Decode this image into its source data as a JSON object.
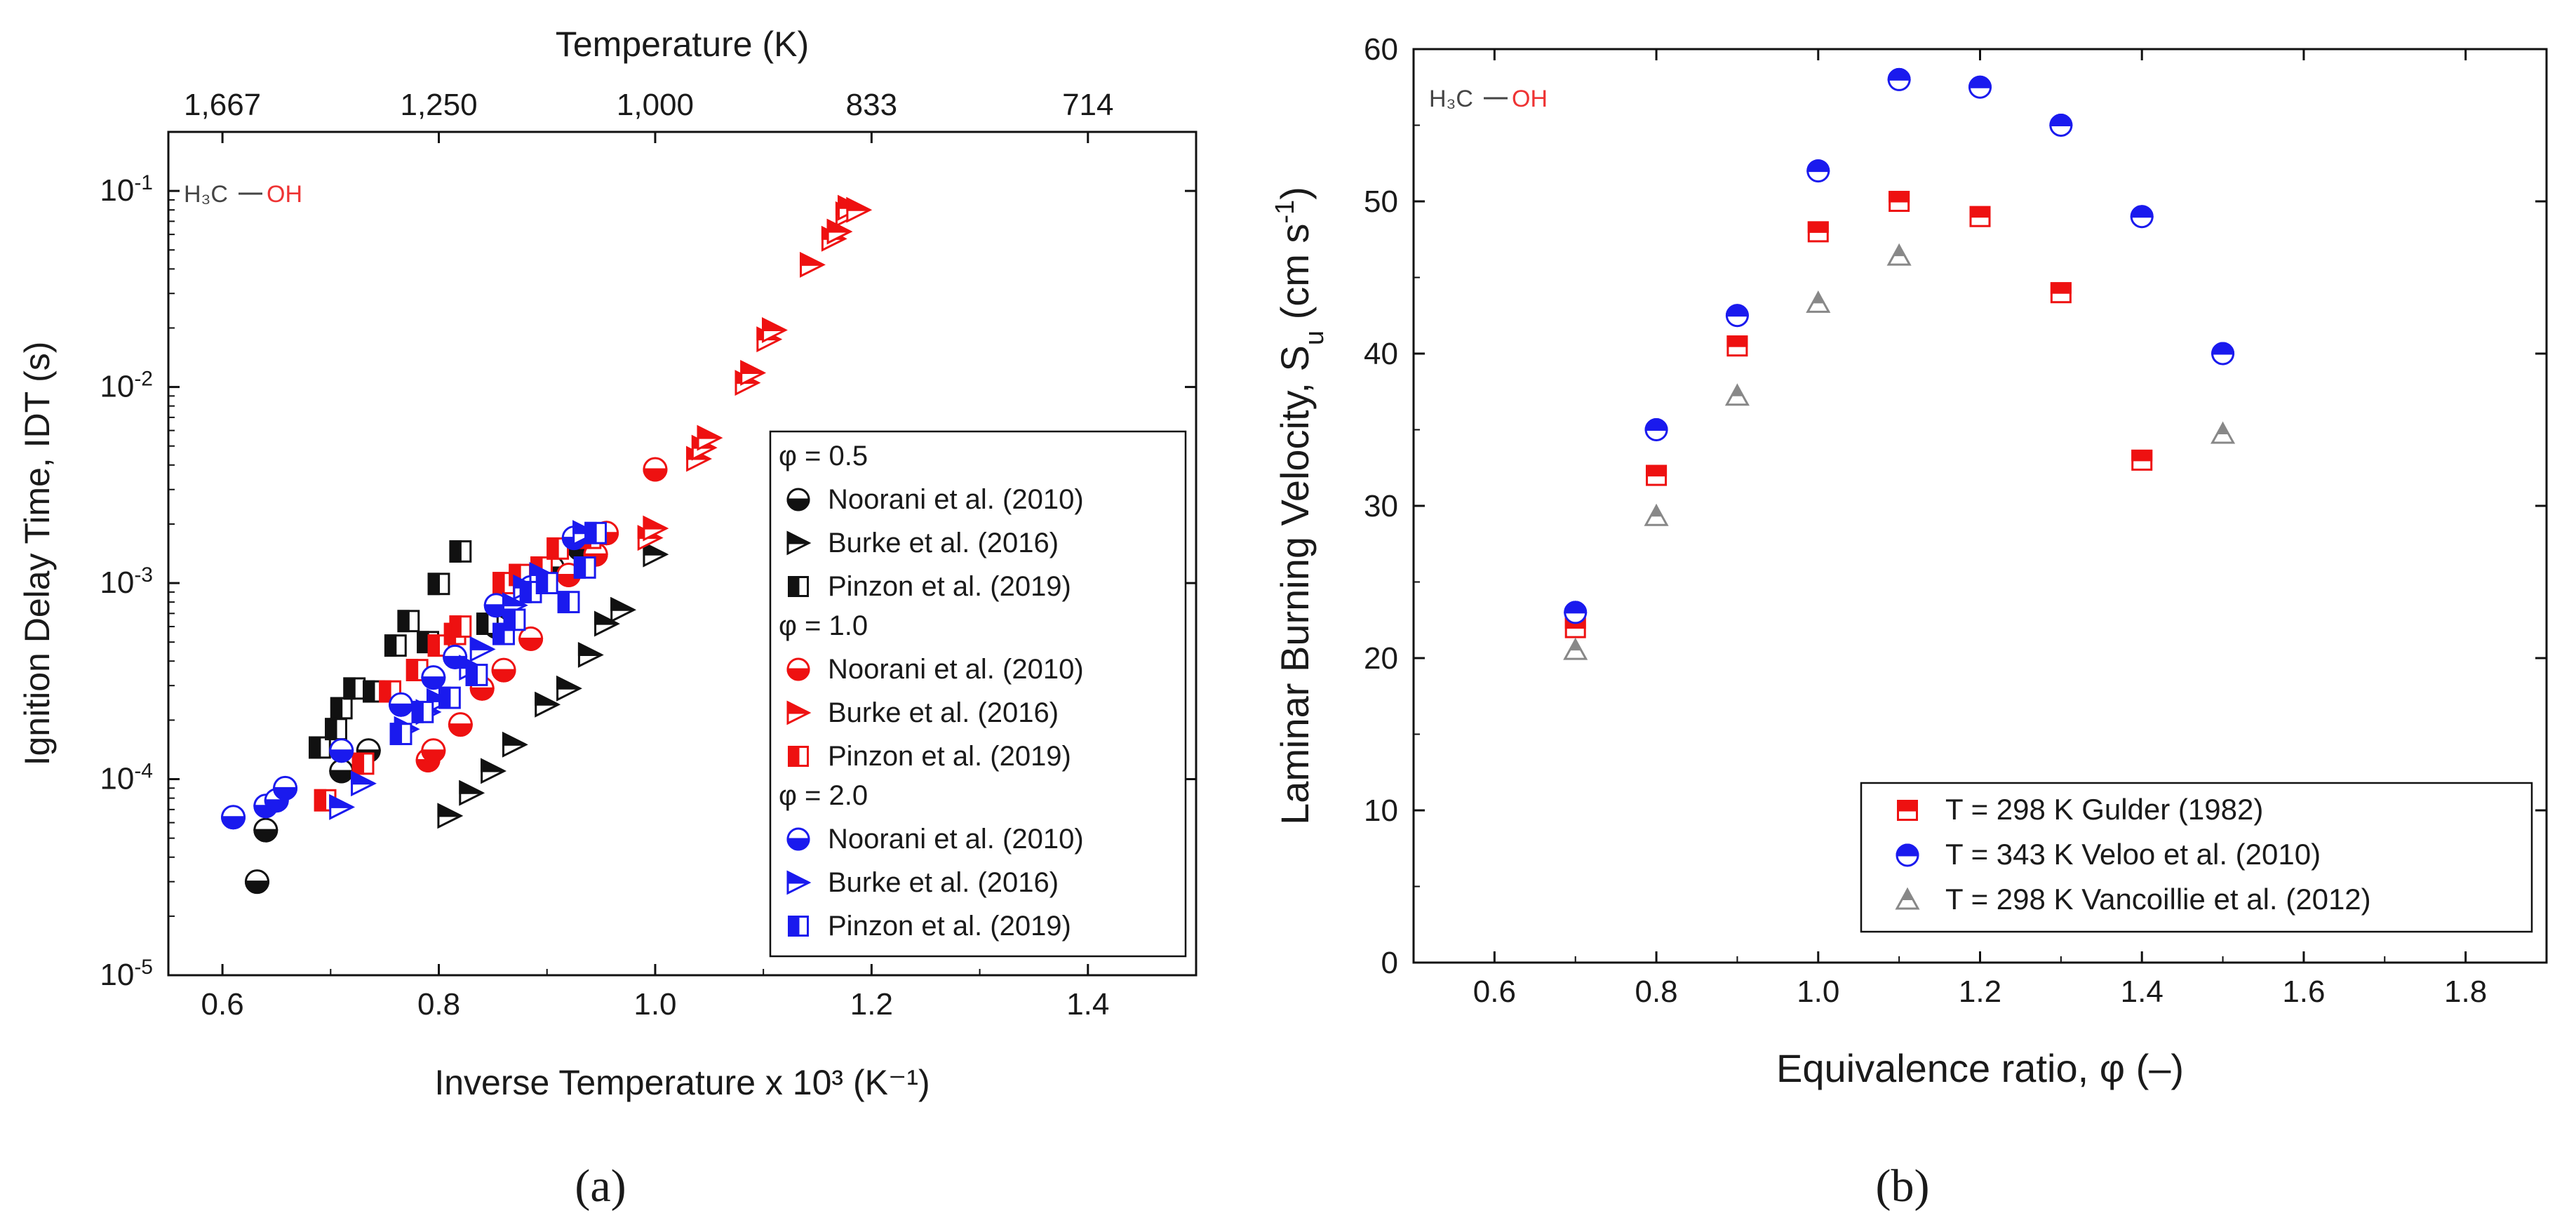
{
  "figure": {
    "panel_a_label": "(a)",
    "panel_b_label": "(b)"
  },
  "chart_data": [
    {
      "type": "scatter",
      "panel": "a",
      "xlabel": "Inverse Temperature x 10³ (K⁻¹)",
      "ylabel": "Ignition Delay Time, IDT (s)",
      "top_axis_label": "Temperature (K)",
      "top_ticks": [
        {
          "label": "1,667",
          "inv_x": 0.6
        },
        {
          "label": "1,250",
          "inv_x": 0.8
        },
        {
          "label": "1,000",
          "inv_x": 1.0
        },
        {
          "label": "833",
          "inv_x": 1.2
        },
        {
          "label": "714",
          "inv_x": 1.4
        }
      ],
      "xlim": [
        0.55,
        1.5
      ],
      "xticks": [
        0.6,
        0.8,
        1.0,
        1.2,
        1.4
      ],
      "xtick_labels": [
        "0.6",
        "0.8",
        "1.0",
        "1.2",
        "1.4"
      ],
      "ylim": [
        1e-05,
        0.2
      ],
      "yscale": "log",
      "yticks": [
        {
          "value": 0.1,
          "mantissa": "10",
          "exp": "-1"
        },
        {
          "value": 0.01,
          "mantissa": "10",
          "exp": "-2"
        },
        {
          "value": 0.001,
          "mantissa": "10",
          "exp": "-3"
        },
        {
          "value": 0.0001,
          "mantissa": "10",
          "exp": "-4"
        },
        {
          "value": 1e-05,
          "mantissa": "10",
          "exp": "-5"
        }
      ],
      "molecule": {
        "left": "H₃C",
        "right": "OH"
      },
      "colors": {
        "black": "#111111",
        "red": "#ee1111",
        "blue": "#1a1aee",
        "gray": "#888888"
      },
      "legend": {
        "position": "right",
        "groups": [
          {
            "title": "φ = 0.5",
            "entries": [
              {
                "label": "Noorani et al. (2010)",
                "marker": "circle-half-bottom",
                "color": "#111111"
              },
              {
                "label": "Burke et al. (2016)",
                "marker": "triangle-right-half",
                "color": "#111111"
              },
              {
                "label": "Pinzon et al. (2019)",
                "marker": "square-half-left",
                "color": "#111111"
              }
            ]
          },
          {
            "title": "φ = 1.0",
            "entries": [
              {
                "label": "Noorani et al. (2010)",
                "marker": "circle-half-bottom",
                "color": "#ee1111"
              },
              {
                "label": "Burke et al. (2016)",
                "marker": "triangle-right-half",
                "color": "#ee1111"
              },
              {
                "label": "Pinzon et al. (2019)",
                "marker": "square-half-left",
                "color": "#ee1111"
              }
            ]
          },
          {
            "title": "φ = 2.0",
            "entries": [
              {
                "label": "Noorani et al. (2010)",
                "marker": "circle-half-bottom",
                "color": "#1a1aee"
              },
              {
                "label": "Burke et al. (2016)",
                "marker": "triangle-right-half",
                "color": "#1a1aee"
              },
              {
                "label": "Pinzon et al. (2019)",
                "marker": "square-half-left",
                "color": "#1a1aee"
              }
            ]
          }
        ]
      },
      "series": [
        {
          "name": "φ = 0.5 Noorani et al. (2010)",
          "marker": "circle-half-bottom",
          "color": "#111111",
          "points": [
            [
              0.632,
              3e-05
            ],
            [
              0.64,
              5.5e-05
            ],
            [
              0.71,
              0.00011
            ],
            [
              0.735,
              0.00014
            ],
            [
              0.853,
              0.0006
            ],
            [
              0.905,
              0.0012
            ],
            [
              0.93,
              0.0015
            ]
          ]
        },
        {
          "name": "φ = 0.5 Burke et al. (2016)",
          "marker": "triangle-right-half",
          "color": "#111111",
          "points": [
            [
              0.81,
              6.5e-05
            ],
            [
              0.83,
              8.5e-05
            ],
            [
              0.85,
              0.00011
            ],
            [
              0.87,
              0.00015
            ],
            [
              0.9,
              0.00024
            ],
            [
              0.92,
              0.00029
            ],
            [
              0.94,
              0.00043
            ],
            [
              0.955,
              0.00062
            ],
            [
              0.97,
              0.00073
            ],
            [
              1.0,
              0.0014
            ]
          ]
        },
        {
          "name": "φ = 0.5 Pinzon et al. (2019)",
          "marker": "square-half-left",
          "color": "#111111",
          "points": [
            [
              0.69,
              0.000145
            ],
            [
              0.705,
              0.00018
            ],
            [
              0.71,
              0.00023
            ],
            [
              0.722,
              0.00029
            ],
            [
              0.74,
              0.00028
            ],
            [
              0.76,
              0.00048
            ],
            [
              0.772,
              0.00064
            ],
            [
              0.8,
              0.00099
            ],
            [
              0.82,
              0.00145
            ],
            [
              0.79,
              0.0005
            ],
            [
              0.845,
              0.00062
            ]
          ]
        },
        {
          "name": "φ = 1.0 Noorani et al. (2010)",
          "marker": "circle-half-bottom",
          "color": "#ee1111",
          "points": [
            [
              0.79,
              0.000125
            ],
            [
              0.795,
              0.00014
            ],
            [
              0.82,
              0.00019
            ],
            [
              0.84,
              0.00029
            ],
            [
              0.86,
              0.00036
            ],
            [
              0.885,
              0.00052
            ],
            [
              0.92,
              0.0011
            ],
            [
              0.945,
              0.0014
            ],
            [
              0.955,
              0.0018
            ],
            [
              1.0,
              0.0038
            ]
          ]
        },
        {
          "name": "φ = 1.0 Burke et al. (2016)",
          "marker": "triangle-right-half",
          "color": "#ee1111",
          "points": [
            [
              0.995,
              0.0017
            ],
            [
              1.0,
              0.0019
            ],
            [
              1.04,
              0.0043
            ],
            [
              1.045,
              0.0049
            ],
            [
              1.05,
              0.0055
            ],
            [
              1.085,
              0.0105
            ],
            [
              1.09,
              0.0118
            ],
            [
              1.105,
              0.0175
            ],
            [
              1.11,
              0.0195
            ],
            [
              1.145,
              0.042
            ],
            [
              1.165,
              0.057
            ],
            [
              1.17,
              0.062
            ],
            [
              1.178,
              0.076
            ],
            [
              1.18,
              0.082
            ],
            [
              1.188,
              0.08
            ]
          ]
        },
        {
          "name": "φ = 1.0 Pinzon et al. (2019)",
          "marker": "square-half-left",
          "color": "#ee1111",
          "points": [
            [
              0.695,
              7.8e-05
            ],
            [
              0.73,
              0.00012
            ],
            [
              0.755,
              0.00028
            ],
            [
              0.78,
              0.00036
            ],
            [
              0.8,
              0.00048
            ],
            [
              0.815,
              0.00055
            ],
            [
              0.82,
              0.0006
            ],
            [
              0.86,
              0.001
            ],
            [
              0.875,
              0.0011
            ],
            [
              0.895,
              0.0012
            ],
            [
              0.91,
              0.0015
            ],
            [
              0.94,
              0.0017
            ]
          ]
        },
        {
          "name": "φ = 2.0 Noorani et al. (2010)",
          "marker": "circle-half-bottom",
          "color": "#1a1aee",
          "points": [
            [
              0.61,
              6.4e-05
            ],
            [
              0.64,
              7.3e-05
            ],
            [
              0.65,
              7.8e-05
            ],
            [
              0.658,
              9e-05
            ],
            [
              0.71,
              0.00014
            ],
            [
              0.765,
              0.00024
            ],
            [
              0.795,
              0.00033
            ],
            [
              0.815,
              0.00042
            ],
            [
              0.853,
              0.00077
            ],
            [
              0.885,
              0.00095
            ],
            [
              0.925,
              0.0017
            ]
          ]
        },
        {
          "name": "φ = 2.0 Burke et al. (2016)",
          "marker": "triangle-right-half",
          "color": "#1a1aee",
          "points": [
            [
              0.71,
              7.2e-05
            ],
            [
              0.73,
              9.5e-05
            ],
            [
              0.77,
              0.00018
            ],
            [
              0.79,
              0.00022
            ],
            [
              0.8,
              0.00025
            ],
            [
              0.83,
              0.00037
            ],
            [
              0.84,
              0.00046
            ],
            [
              0.87,
              0.00077
            ],
            [
              0.88,
              0.00095
            ],
            [
              0.895,
              0.0011
            ],
            [
              0.935,
              0.0018
            ]
          ]
        },
        {
          "name": "φ = 2.0 Pinzon et al. (2019)",
          "marker": "square-half-left",
          "color": "#1a1aee",
          "points": [
            [
              0.765,
              0.00017
            ],
            [
              0.785,
              0.00022
            ],
            [
              0.81,
              0.00026
            ],
            [
              0.835,
              0.00034
            ],
            [
              0.86,
              0.00055
            ],
            [
              0.87,
              0.00065
            ],
            [
              0.885,
              0.0009
            ],
            [
              0.9,
              0.001
            ],
            [
              0.92,
              0.0008
            ],
            [
              0.935,
              0.0012
            ],
            [
              0.945,
              0.0018
            ]
          ]
        }
      ]
    },
    {
      "type": "scatter",
      "panel": "b",
      "xlabel": "Equivalence ratio, φ (–)",
      "ylabel": "Laminar Burning Velocity, S",
      "ylabel_subscript": "u",
      "ylabel_units": " (cm s",
      "ylabel_units_exp": "-1",
      "ylabel_units_close": ")",
      "xlim": [
        0.5,
        1.9
      ],
      "xticks": [
        0.6,
        0.8,
        1.0,
        1.2,
        1.4,
        1.6,
        1.8
      ],
      "xtick_labels": [
        "0.6",
        "0.8",
        "1.0",
        "1.2",
        "1.4",
        "1.6",
        "1.8"
      ],
      "ylim": [
        0,
        60
      ],
      "yticks": [
        0,
        10,
        20,
        30,
        40,
        50,
        60
      ],
      "ytick_labels": [
        "0",
        "10",
        "20",
        "30",
        "40",
        "50",
        "60"
      ],
      "molecule": {
        "left": "H₃C",
        "right": "OH"
      },
      "legend": {
        "position": "bottom-right"
      },
      "series": [
        {
          "name": "T = 298 K Gulder (1982)",
          "marker": "square-half-top",
          "color": "#ee1111",
          "x": [
            0.7,
            0.8,
            0.9,
            1.0,
            1.1,
            1.2,
            1.3,
            1.4
          ],
          "y": [
            22,
            32,
            40.5,
            48,
            50,
            49,
            44,
            33
          ]
        },
        {
          "name": "T = 343 K Veloo et al. (2010)",
          "marker": "circle-half-top",
          "color": "#1a1aee",
          "x": [
            0.7,
            0.8,
            0.9,
            1.0,
            1.1,
            1.2,
            1.3,
            1.4,
            1.5
          ],
          "y": [
            23,
            35,
            42.5,
            52,
            58,
            57.5,
            55,
            49,
            40
          ]
        },
        {
          "name": "T = 298 K Vancoillie et al. (2012)",
          "marker": "triangle-up-half",
          "color": "#888888",
          "x": [
            0.7,
            0.8,
            0.9,
            1.0,
            1.1,
            1.5
          ],
          "y": [
            20.5,
            29.3,
            37.2,
            43.3,
            46.4,
            34.7
          ]
        }
      ]
    }
  ]
}
